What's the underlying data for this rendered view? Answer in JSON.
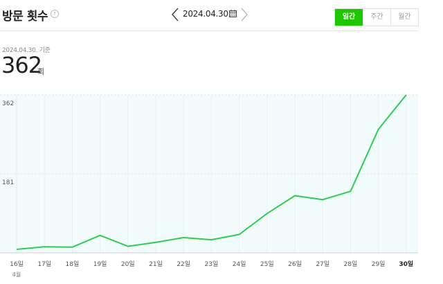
{
  "header": {
    "title": "방문 횟수",
    "help_glyph": "?",
    "date": "2024.04.30.",
    "tabs": [
      {
        "label": "일간",
        "active": true
      },
      {
        "label": "주간",
        "active": false
      },
      {
        "label": "월간",
        "active": false
      }
    ]
  },
  "summary": {
    "reference": "2024.04.30. 기준",
    "value": "362",
    "unit": "회"
  },
  "colors": {
    "accent": "#1ec800",
    "line": "#2ecc4f",
    "fill": "#f3fcfd"
  },
  "chart_data": {
    "type": "line",
    "x": [
      "16일",
      "17일",
      "18일",
      "19일",
      "20일",
      "21일",
      "22일",
      "23일",
      "24일",
      "25일",
      "26일",
      "27일",
      "28일",
      "29일",
      "30일"
    ],
    "x_sub": "4월",
    "highlight_index": 14,
    "series": [
      {
        "values": [
          8,
          14,
          13,
          40,
          15,
          24,
          35,
          30,
          42,
          90,
          131,
          122,
          141,
          283,
          362
        ]
      }
    ],
    "ylim": [
      0,
      362
    ],
    "y_ticks": [
      181,
      362
    ],
    "y_tick_labels": [
      "181",
      "362"
    ],
    "grid": true
  }
}
